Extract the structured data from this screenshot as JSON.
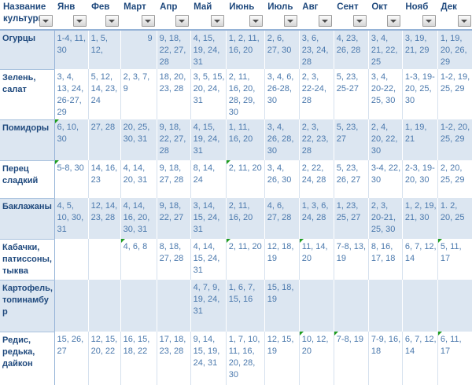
{
  "table": {
    "corner_header": "Название культуры",
    "months": [
      "Янв",
      "Фев",
      "Март",
      "Апр",
      "Май",
      "Июнь",
      "Июль",
      "Авг",
      "Сент",
      "Окт",
      "Нояб",
      "Дек"
    ],
    "rows": [
      {
        "name": "Огурцы",
        "values": [
          "1-4, 11, 30",
          "1, 5, 12,",
          "9",
          "9, 18, 22, 27, 28",
          "4, 15, 19, 24, 31",
          "1, 2, 11, 16, 20",
          "2, 6, 27, 30",
          "3, 6, 23, 24, 28",
          "4, 23, 26, 28",
          "3, 4, 21, 22, 25",
          "3, 19, 21, 29",
          "1, 19, 20, 26, 29"
        ]
      },
      {
        "name": "Зелень, салат",
        "values": [
          "3, 4, 13, 24, 26-27, 29",
          "5, 12, 14, 23, 24",
          "2, 3, 7, 9",
          "18, 20, 23, 28",
          "3, 5, 15, 20, 24, 31",
          "2, 11, 16, 20, 28, 29, 30",
          "3, 4, 6, 26-28, 30",
          "2, 3, 22-24, 28",
          "5, 23, 25-27",
          "3, 4, 20-22, 25, 30",
          "1-3, 19-20, 25, 30",
          "1-2, 19, 25, 29"
        ]
      },
      {
        "name": "Помидоры",
        "values": [
          "6, 10, 30",
          "27, 28",
          "20, 25, 30, 31",
          "9, 18, 22, 27, 28",
          "4, 15, 19, 24, 31",
          "1, 11, 16, 20",
          "3, 4, 26, 28, 30",
          "2, 3, 22, 23, 28",
          "5, 23, 27",
          "2, 4, 20, 22, 30",
          "1, 19, 21",
          "1-2, 20, 25, 29"
        ]
      },
      {
        "name": "Перец сладкий",
        "values": [
          "5-8, 30",
          "14, 16, 23",
          "4, 14, 20, 31",
          "9, 18, 27, 28",
          "8, 14, 24",
          "2, 11, 20",
          "3, 4, 26, 30",
          "2, 22, 24, 28",
          "5, 23, 26, 27",
          "3-4, 22, 30",
          "2-3, 19-20, 30",
          "2, 20, 25, 29"
        ]
      },
      {
        "name": "Баклажаны",
        "values": [
          "4, 5, 10, 30, 31",
          "12, 14, 23, 28",
          "4, 14, 16, 20, 30, 31",
          "9, 18, 22, 27",
          "3, 14, 15, 24, 31",
          "2, 11, 16, 20",
          "4, 6, 27, 28",
          "1, 3, 6, 24, 28",
          "1, 23, 25, 27",
          "2, 3, 20-21, 25, 30",
          "1, 2, 19, 21, 30",
          "1. 2, 20, 25"
        ]
      },
      {
        "name": "Кабачки, патиссоны, тыква",
        "values": [
          "",
          "",
          "4, 6, 8",
          "8, 18, 27, 28",
          "4, 14, 15, 24, 31",
          "2, 11, 20",
          "12, 18, 19",
          "11, 14, 20",
          "7-8, 13, 19",
          "8, 16, 17, 18",
          "6, 7, 12, 14",
          "5, 11, 17"
        ]
      },
      {
        "name": "Картофель, топинамбур",
        "values": [
          "",
          "",
          "",
          "",
          "4, 7, 9, 19, 24, 31",
          "1, 6, 7, 15, 16",
          "15, 18, 19",
          "",
          "",
          "",
          "",
          ""
        ]
      },
      {
        "name": "Редис, редька, дайкон",
        "values": [
          "15, 26, 27",
          "12, 15, 20, 22",
          "16, 15, 18, 22",
          "17, 18, 23, 28",
          "9, 14, 15, 19, 24, 31",
          "1, 7, 10, 11, 16, 20, 28, 30",
          "12, 15, 19",
          "10, 12, 20",
          "7-8, 19",
          "7-9, 16, 18",
          "6, 7, 12, 14",
          "6, 11, 17"
        ]
      }
    ],
    "flagged_cells": [
      [
        2,
        0
      ],
      [
        3,
        0
      ],
      [
        3,
        5
      ],
      [
        5,
        2
      ],
      [
        5,
        5
      ],
      [
        5,
        7
      ],
      [
        5,
        11
      ],
      [
        7,
        7
      ],
      [
        7,
        8
      ],
      [
        7,
        11
      ]
    ],
    "right_aligned_cells": [
      [
        0,
        2
      ]
    ]
  },
  "colors": {
    "band": "#dce6f1",
    "header_text": "#1f497d",
    "value_text": "#4b79ad",
    "name_column_border": "#95b3d7",
    "error_flag": "#1f9d1f"
  },
  "icons": {
    "filter_dropdown_arrow": "▼",
    "error_flag": "green-corner-triangle"
  }
}
